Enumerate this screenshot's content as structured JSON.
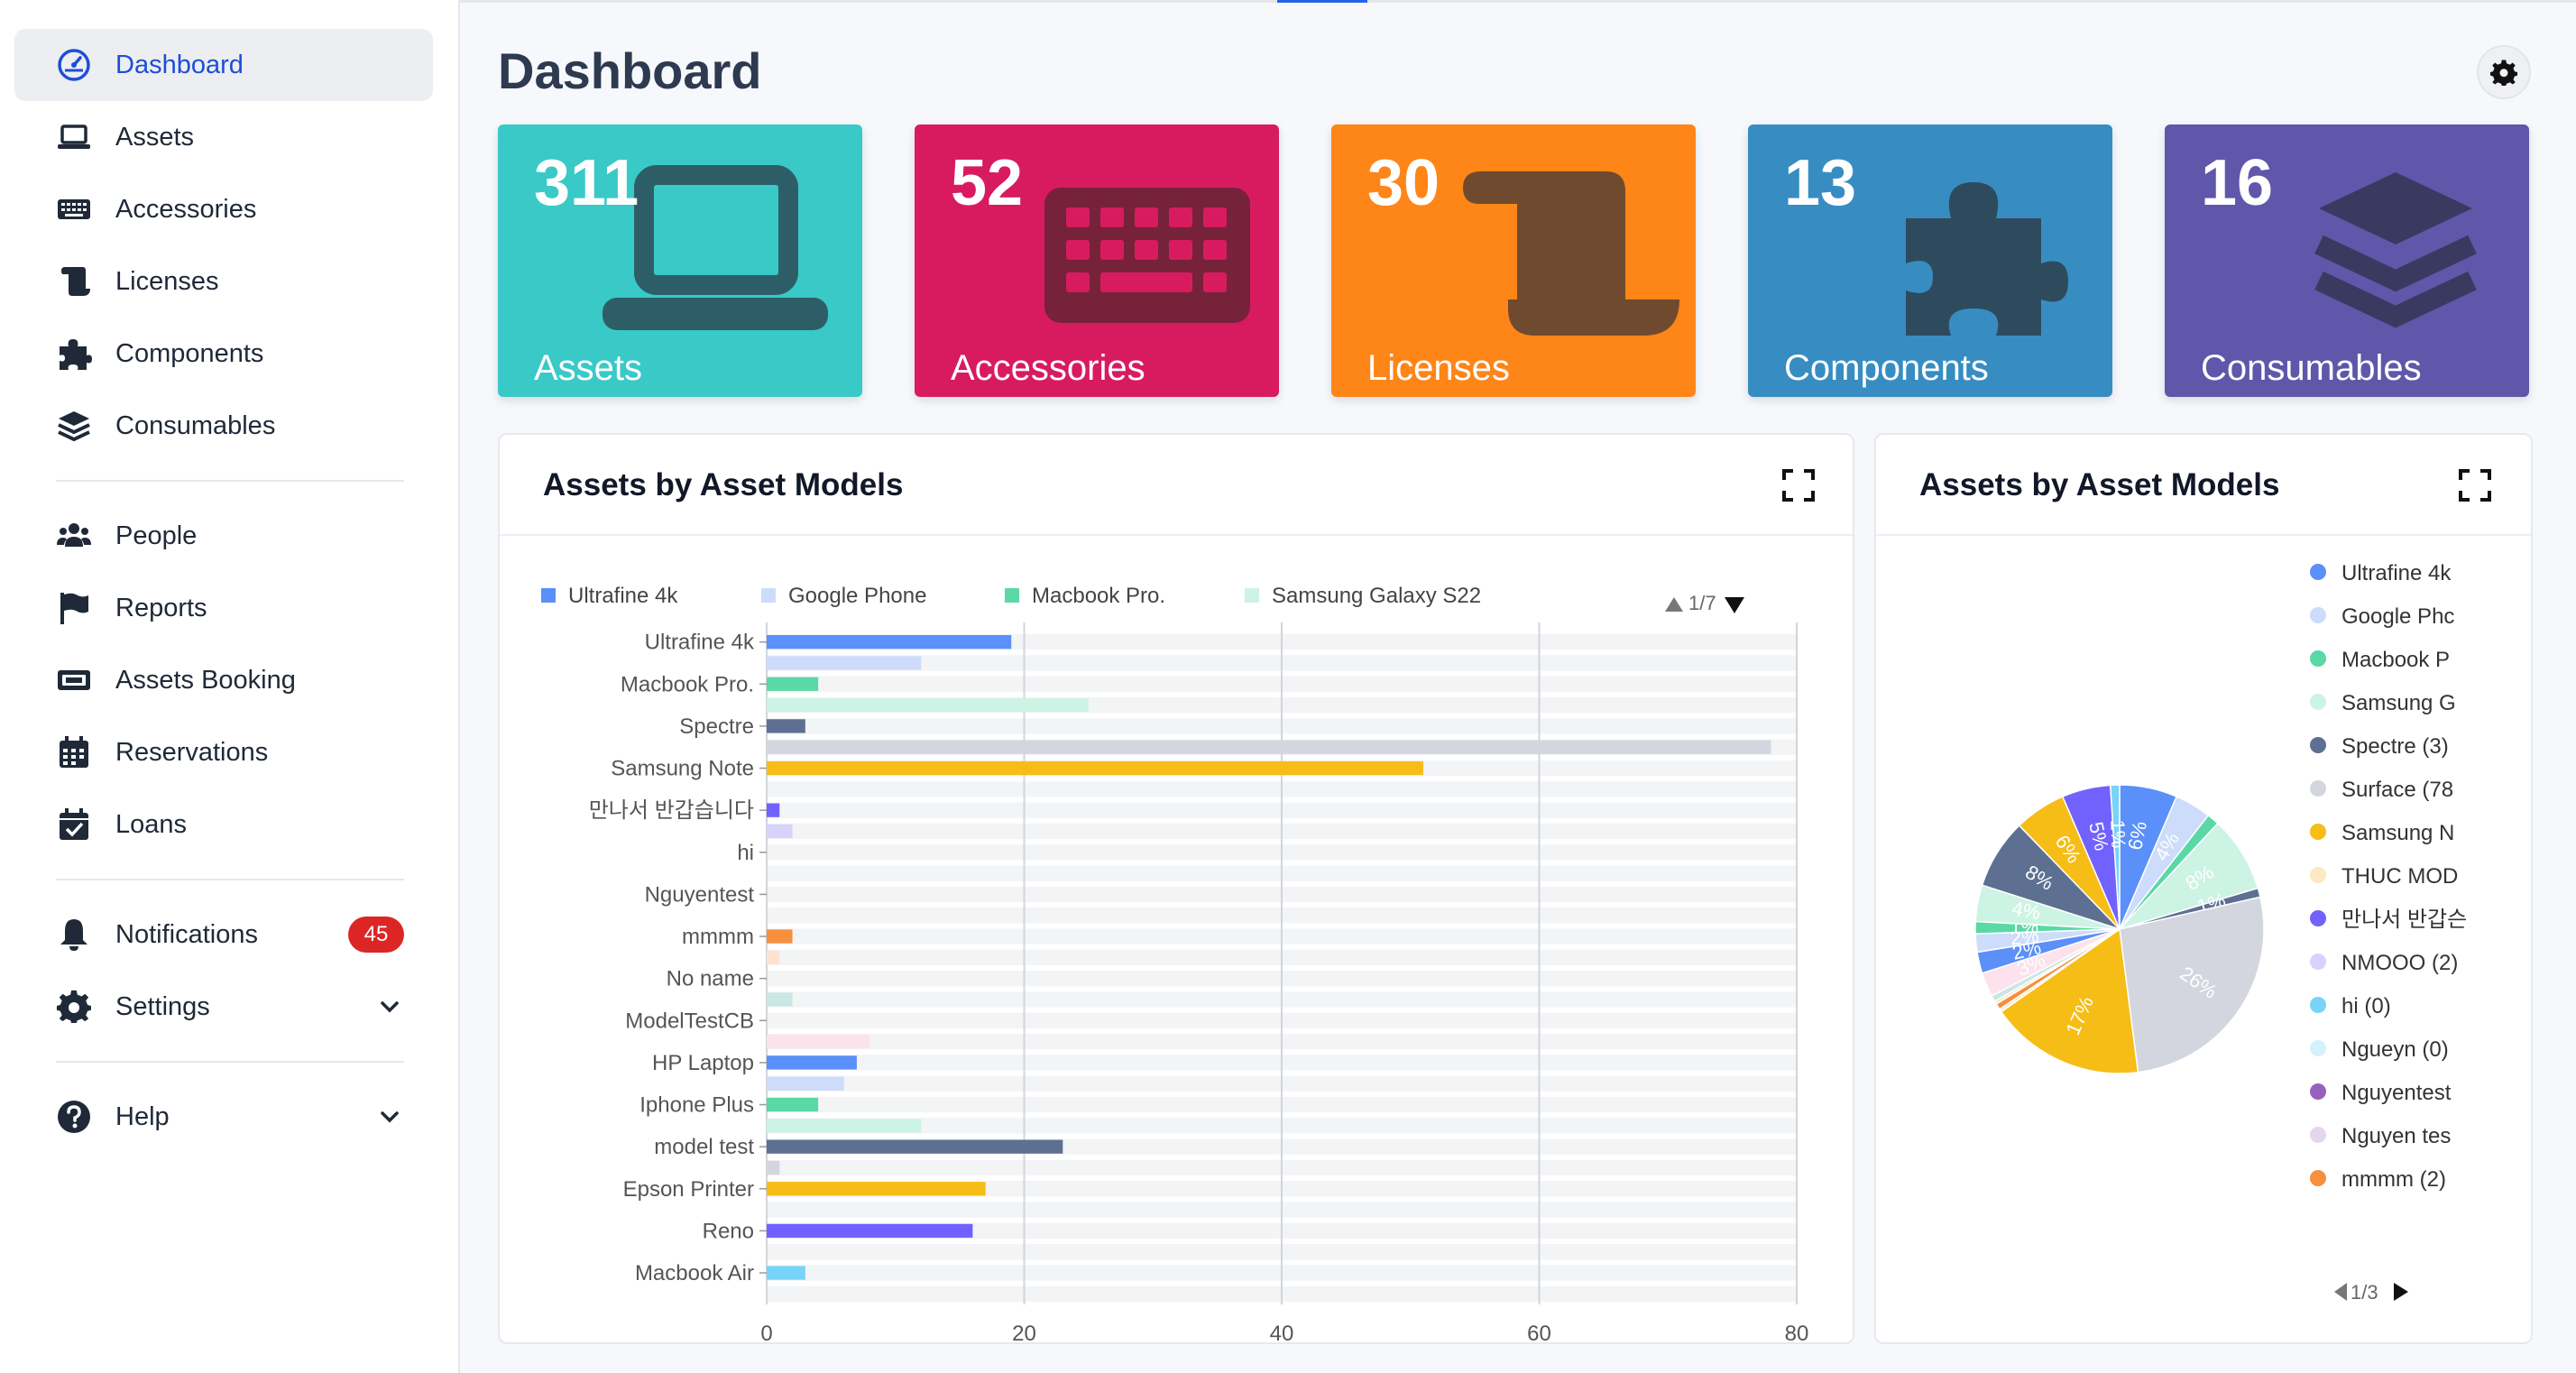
{
  "sidebar": {
    "items": [
      {
        "label": "Dashboard",
        "icon": "dashboard-icon"
      },
      {
        "label": "Assets",
        "icon": "laptop-icon"
      },
      {
        "label": "Accessories",
        "icon": "keyboard-icon"
      },
      {
        "label": "Licenses",
        "icon": "license-scroll-icon"
      },
      {
        "label": "Components",
        "icon": "puzzle-icon"
      },
      {
        "label": "Consumables",
        "icon": "layers-icon"
      },
      {
        "label": "People",
        "icon": "people-icon"
      },
      {
        "label": "Reports",
        "icon": "flag-icon"
      },
      {
        "label": "Assets Booking",
        "icon": "booking-icon"
      },
      {
        "label": "Reservations",
        "icon": "calendar-icon"
      },
      {
        "label": "Loans",
        "icon": "calendar-check-icon"
      },
      {
        "label": "Notifications",
        "icon": "bell-icon",
        "badge": "45"
      },
      {
        "label": "Settings",
        "icon": "gear-icon"
      },
      {
        "label": "Help",
        "icon": "help-icon"
      }
    ]
  },
  "header": {
    "title": "Dashboard"
  },
  "cards": [
    {
      "count": "311",
      "label": "Assets",
      "color": "#39c9c7"
    },
    {
      "count": "52",
      "label": "Accessories",
      "color": "#d81b5f"
    },
    {
      "count": "30",
      "label": "Licenses",
      "color": "#fe8518"
    },
    {
      "count": "13",
      "label": "Components",
      "color": "#378dc2"
    },
    {
      "count": "16",
      "label": "Consumables",
      "color": "#6056aa"
    }
  ],
  "bar_panel": {
    "title": "Assets by Asset Models",
    "pager": "1/7"
  },
  "pie_panel": {
    "title": "Assets by Asset Models",
    "pager": "1/3"
  },
  "chart_data": [
    {
      "type": "bar",
      "orientation": "horizontal",
      "legend": [
        {
          "name": "Ultrafine 4k",
          "color": "#5b8ff9"
        },
        {
          "name": "Google Phone",
          "color": "#cddcfb"
        },
        {
          "name": "Macbook Pro.",
          "color": "#5ad8a6"
        },
        {
          "name": "Samsung Galaxy S22",
          "color": "#cdf3e4"
        }
      ],
      "categories": [
        "Ultrafine 4k",
        "Macbook Pro.",
        "Spectre",
        "Samsung Note",
        "만나서 반갑습니다",
        "hi",
        "Nguyentest",
        "mmmm",
        "No name",
        "ModelTestCB",
        "HP Laptop",
        "Iphone Plus",
        "model test",
        "Epson Printer",
        "Reno",
        "Macbook Air"
      ],
      "bars": [
        {
          "name": "Ultrafine 4k",
          "value": 19,
          "color": "#5b8ff9"
        },
        {
          "name": "Google Phone",
          "value": 12,
          "color": "#cddcfb"
        },
        {
          "name": "Macbook Pro.",
          "value": 4,
          "color": "#5ad8a6"
        },
        {
          "name": "Samsung Galaxy S22",
          "value": 25,
          "color": "#cdf3e4"
        },
        {
          "name": "Spectre",
          "value": 3,
          "color": "#5d7092"
        },
        {
          "name": "Surface",
          "value": 78,
          "color": "#d3d6de"
        },
        {
          "name": "Samsung Note",
          "value": 51,
          "color": "#f6bd16"
        },
        {
          "name": "THUC MODEL",
          "value": 0,
          "color": "#fce8c3"
        },
        {
          "name": "만나서 반갑습니다",
          "value": 1,
          "color": "#7262fd"
        },
        {
          "name": "NMOOO",
          "value": 2,
          "color": "#d7d2fe"
        },
        {
          "name": "hi",
          "value": 0,
          "color": "#78d3f8"
        },
        {
          "name": "Ngueyn",
          "value": 0,
          "color": "#d4f1fd"
        },
        {
          "name": "Nguyentest",
          "value": 0,
          "color": "#9661bc"
        },
        {
          "name": "Nguyen test",
          "value": 0,
          "color": "#e4d7ed"
        },
        {
          "name": "mmmm",
          "value": 2,
          "color": "#f6903d"
        },
        {
          "name": "mmmm 2",
          "value": 1,
          "color": "#fde3cf"
        },
        {
          "name": "No name",
          "value": 0,
          "color": "#008685"
        },
        {
          "name": "No name 2",
          "value": 2,
          "color": "#c9e7e4"
        },
        {
          "name": "ModelTestCB",
          "value": 0,
          "color": "#f08bb4"
        },
        {
          "name": "ModelTestCB 2",
          "value": 8,
          "color": "#fce2ec"
        },
        {
          "name": "HP Laptop",
          "value": 7,
          "color": "#5b8ff9"
        },
        {
          "name": "HP Laptop 2",
          "value": 6,
          "color": "#cddcfb"
        },
        {
          "name": "Iphone Plus",
          "value": 4,
          "color": "#5ad8a6"
        },
        {
          "name": "Iphone Plus 2",
          "value": 12,
          "color": "#cdf3e4"
        },
        {
          "name": "model test",
          "value": 23,
          "color": "#5d7092"
        },
        {
          "name": "model test 2",
          "value": 1,
          "color": "#d3d6de"
        },
        {
          "name": "Epson Printer",
          "value": 17,
          "color": "#f6bd16"
        },
        {
          "name": "Epson Printer 2",
          "value": 0,
          "color": "#fce8c3"
        },
        {
          "name": "Reno",
          "value": 16,
          "color": "#7262fd"
        },
        {
          "name": "Reno 2",
          "value": 0,
          "color": "#d7d2fe"
        },
        {
          "name": "Macbook Air",
          "value": 3,
          "color": "#78d3f8"
        },
        {
          "name": "Macbook Air 2",
          "value": 0,
          "color": "#d4f1fd"
        }
      ],
      "x_ticks": [
        "0",
        "20",
        "40",
        "60",
        "80"
      ],
      "xlim": [
        0,
        80
      ],
      "grid": true,
      "legend_position": "top"
    },
    {
      "type": "pie",
      "legend": [
        {
          "name": "Ultrafine 4k",
          "color": "#5b8ff9"
        },
        {
          "name": "Google Phc",
          "color": "#cddcfb"
        },
        {
          "name": "Macbook P",
          "color": "#5ad8a6"
        },
        {
          "name": "Samsung G",
          "color": "#cdf3e4"
        },
        {
          "name": "Spectre (3)",
          "color": "#5d7092"
        },
        {
          "name": "Surface (78",
          "color": "#d3d6de"
        },
        {
          "name": "Samsung N",
          "color": "#f6bd16"
        },
        {
          "name": "THUC MOD",
          "color": "#fce8c3"
        },
        {
          "name": "만나서 반갑슨",
          "color": "#7262fd"
        },
        {
          "name": "NMOOO (2)",
          "color": "#d7d2fe"
        },
        {
          "name": "hi (0)",
          "color": "#78d3f8"
        },
        {
          "name": "Ngueyn (0)",
          "color": "#d4f1fd"
        },
        {
          "name": "Nguyentest",
          "color": "#9661bc"
        },
        {
          "name": "Nguyen tes",
          "color": "#e4d7ed"
        },
        {
          "name": "mmmm (2)",
          "color": "#f6903d"
        }
      ],
      "slices": [
        {
          "value": 19,
          "color": "#5b8ff9",
          "label": "6%"
        },
        {
          "value": 12,
          "color": "#cddcfb",
          "label": "4%"
        },
        {
          "value": 4,
          "color": "#5ad8a6",
          "label": ""
        },
        {
          "value": 25,
          "color": "#cdf3e4",
          "label": "8%"
        },
        {
          "value": 3,
          "color": "#5d7092",
          "label": "1%"
        },
        {
          "value": 78,
          "color": "#d3d6de",
          "label": "26%"
        },
        {
          "value": 51,
          "color": "#f6bd16",
          "label": "17%"
        },
        {
          "value": 1,
          "color": "#fce8c3",
          "label": ""
        },
        {
          "value": 2,
          "color": "#f6903d",
          "label": ""
        },
        {
          "value": 1,
          "color": "#fde3cf",
          "label": ""
        },
        {
          "value": 2,
          "color": "#c9e7e4",
          "label": ""
        },
        {
          "value": 8,
          "color": "#fce2ec",
          "label": "3%"
        },
        {
          "value": 7,
          "color": "#5b8ff9",
          "label": "2%"
        },
        {
          "value": 6,
          "color": "#cddcfb",
          "label": "2%"
        },
        {
          "value": 4,
          "color": "#5ad8a6",
          "label": "1%"
        },
        {
          "value": 12,
          "color": "#cdf3e4",
          "label": "4%"
        },
        {
          "value": 23,
          "color": "#5d7092",
          "label": "8%"
        },
        {
          "value": 17,
          "color": "#f6bd16",
          "label": "6%"
        },
        {
          "value": 16,
          "color": "#7262fd",
          "label": "5%"
        },
        {
          "value": 3,
          "color": "#78d3f8",
          "label": "1%"
        }
      ]
    }
  ]
}
